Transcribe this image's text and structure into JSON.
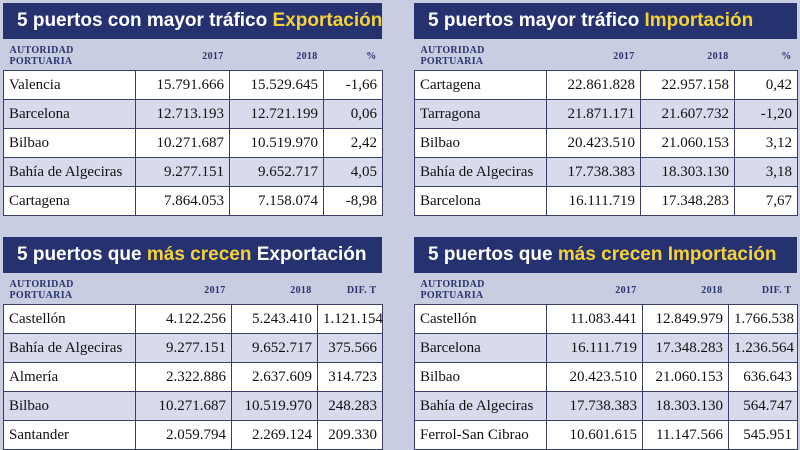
{
  "panels": [
    {
      "title_pre": "5 puertos con mayor tráfico ",
      "title_hl": "Exportación",
      "title_post": "",
      "headers": [
        "AUTORIDAD PORTUARIA",
        "2017",
        "2018",
        "%"
      ],
      "rows": [
        [
          "Valencia",
          "15.791.666",
          "15.529.645",
          "-1,66"
        ],
        [
          "Barcelona",
          "12.713.193",
          "12.721.199",
          "0,06"
        ],
        [
          "Bilbao",
          "10.271.687",
          "10.519.970",
          "2,42"
        ],
        [
          "Bahía de Algeciras",
          "9.277.151",
          "9.652.717",
          "4,05"
        ],
        [
          "Cartagena",
          "7.864.053",
          "7.158.074",
          "-8,98"
        ]
      ]
    },
    {
      "title_pre": "5 puertos mayor tráfico ",
      "title_hl": "Importación",
      "title_post": "",
      "headers": [
        "AUTORIDAD PORTUARIA",
        "2017",
        "2018",
        "%"
      ],
      "rows": [
        [
          "Cartagena",
          "22.861.828",
          "22.957.158",
          "0,42"
        ],
        [
          "Tarragona",
          "21.871.171",
          "21.607.732",
          "-1,20"
        ],
        [
          "Bilbao",
          "20.423.510",
          "21.060.153",
          "3,12"
        ],
        [
          "Bahía de Algeciras",
          "17.738.383",
          "18.303.130",
          "3,18"
        ],
        [
          "Barcelona",
          "16.111.719",
          "17.348.283",
          "7,67"
        ]
      ]
    },
    {
      "title_pre": "5 puertos que ",
      "title_hl": "más crecen",
      "title_post": " Exportación",
      "headers": [
        "AUTORIDAD PORTUARIA",
        "2017",
        "2018",
        "DIF. T"
      ],
      "rows": [
        [
          "Castellón",
          "4.122.256",
          "5.243.410",
          "1.121.154"
        ],
        [
          "Bahía de Algeciras",
          "9.277.151",
          "9.652.717",
          "375.566"
        ],
        [
          "Almería",
          "2.322.886",
          "2.637.609",
          "314.723"
        ],
        [
          "Bilbao",
          "10.271.687",
          "10.519.970",
          "248.283"
        ],
        [
          "Santander",
          "2.059.794",
          "2.269.124",
          "209.330"
        ]
      ]
    },
    {
      "title_pre": "5 puertos que ",
      "title_hl": "más crecen Importación",
      "title_post": "",
      "headers": [
        "AUTORIDAD PORTUARIA",
        "2017",
        "2018",
        "DIF. T"
      ],
      "rows": [
        [
          "Castellón",
          "11.083.441",
          "12.849.979",
          "1.766.538"
        ],
        [
          "Barcelona",
          "16.111.719",
          "17.348.283",
          "1.236.564"
        ],
        [
          "Bilbao",
          "20.423.510",
          "21.060.153",
          "636.643"
        ],
        [
          "Bahía de Algeciras",
          "17.738.383",
          "18.303.130",
          "564.747"
        ],
        [
          "Ferrol-San Cibrao",
          "10.601.615",
          "11.147.566",
          "545.951"
        ]
      ]
    }
  ]
}
